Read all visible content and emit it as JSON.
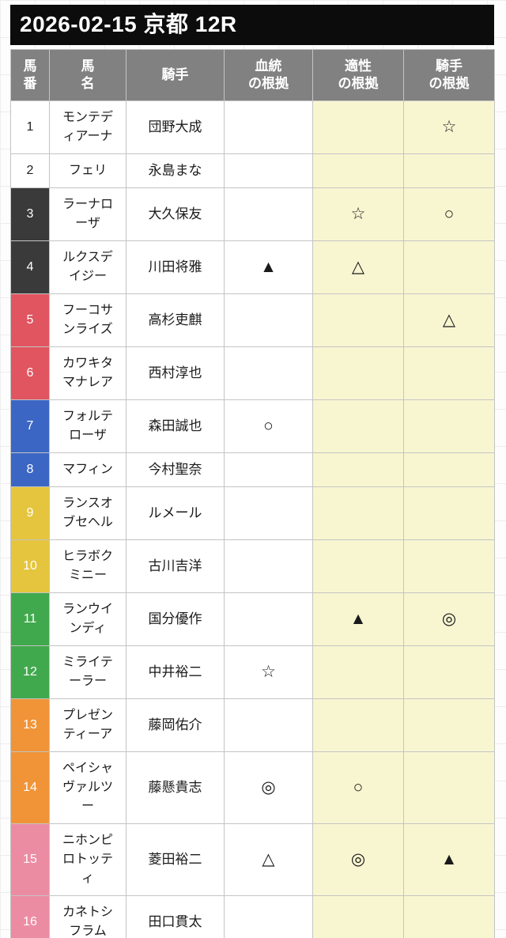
{
  "header": {
    "title": "2026-02-15 京都 12R"
  },
  "table": {
    "columns": [
      {
        "id": "num",
        "lines": [
          "馬",
          "番"
        ]
      },
      {
        "id": "name",
        "lines": [
          "馬",
          "名"
        ]
      },
      {
        "id": "jockey",
        "lines": [
          "騎手"
        ]
      },
      {
        "id": "blood",
        "lines": [
          "血統",
          "の根拠"
        ]
      },
      {
        "id": "apt",
        "lines": [
          "適性",
          "の根拠"
        ]
      },
      {
        "id": "jk",
        "lines": [
          "騎手",
          "の根拠"
        ]
      }
    ],
    "rows": [
      {
        "num": "1",
        "name": "モンテディアーナ",
        "jockey": "団野大成",
        "blood": "",
        "apt": "",
        "jk": "☆",
        "waku": "white"
      },
      {
        "num": "2",
        "name": "フェリ",
        "jockey": "永島まな",
        "blood": "",
        "apt": "",
        "jk": "",
        "waku": "white"
      },
      {
        "num": "3",
        "name": "ラーナローザ",
        "jockey": "大久保友",
        "blood": "",
        "apt": "☆",
        "jk": "○",
        "waku": "black"
      },
      {
        "num": "4",
        "name": "ルクスデイジー",
        "jockey": "川田将雅",
        "blood": "▲",
        "apt": "△",
        "jk": "",
        "waku": "black"
      },
      {
        "num": "5",
        "name": "フーコサンライズ",
        "jockey": "高杉吏麒",
        "blood": "",
        "apt": "",
        "jk": "△",
        "waku": "red"
      },
      {
        "num": "6",
        "name": "カワキタマナレア",
        "jockey": "西村淳也",
        "blood": "",
        "apt": "",
        "jk": "",
        "waku": "red"
      },
      {
        "num": "7",
        "name": "フォルテローザ",
        "jockey": "森田誠也",
        "blood": "○",
        "apt": "",
        "jk": "",
        "waku": "blue"
      },
      {
        "num": "8",
        "name": "マフィン",
        "jockey": "今村聖奈",
        "blood": "",
        "apt": "",
        "jk": "",
        "waku": "blue"
      },
      {
        "num": "9",
        "name": "ランスオブセヘル",
        "jockey": "ルメール",
        "blood": "",
        "apt": "",
        "jk": "",
        "waku": "yellow"
      },
      {
        "num": "10",
        "name": "ヒラボクミニー",
        "jockey": "古川吉洋",
        "blood": "",
        "apt": "",
        "jk": "",
        "waku": "yellow"
      },
      {
        "num": "11",
        "name": "ランウインディ",
        "jockey": "国分優作",
        "blood": "",
        "apt": "▲",
        "jk": "◎",
        "waku": "green"
      },
      {
        "num": "12",
        "name": "ミライテーラー",
        "jockey": "中井裕二",
        "blood": "☆",
        "apt": "",
        "jk": "",
        "waku": "green"
      },
      {
        "num": "13",
        "name": "プレゼンティーア",
        "jockey": "藤岡佑介",
        "blood": "",
        "apt": "",
        "jk": "",
        "waku": "orange"
      },
      {
        "num": "14",
        "name": "ペイシャヴァルツー",
        "jockey": "藤懸貴志",
        "blood": "◎",
        "apt": "○",
        "jk": "",
        "waku": "orange"
      },
      {
        "num": "15",
        "name": "ニホンピロトッティ",
        "jockey": "菱田裕二",
        "blood": "△",
        "apt": "◎",
        "jk": "▲",
        "waku": "pink"
      },
      {
        "num": "16",
        "name": "カネトシフラム",
        "jockey": "田口貫太",
        "blood": "",
        "apt": "",
        "jk": "",
        "waku": "pink"
      }
    ]
  },
  "colors": {
    "title_bg": "#0c0c0c",
    "header_gray": "#818181",
    "evidence_cell_yellow": "#f8f6d1",
    "cell_border": "#c4c4c4",
    "waku": {
      "white": {
        "bg": "#ffffff",
        "text": "#222222"
      },
      "black": {
        "bg": "#3a3a3a",
        "text": "#ffffff"
      },
      "red": {
        "bg": "#e05560",
        "text": "#ffffff"
      },
      "blue": {
        "bg": "#3c66c4",
        "text": "#ffffff"
      },
      "yellow": {
        "bg": "#e5c53d",
        "text": "#ffffff"
      },
      "green": {
        "bg": "#41a94d",
        "text": "#ffffff"
      },
      "orange": {
        "bg": "#f09437",
        "text": "#ffffff"
      },
      "pink": {
        "bg": "#ec8ca2",
        "text": "#ffffff"
      }
    }
  }
}
